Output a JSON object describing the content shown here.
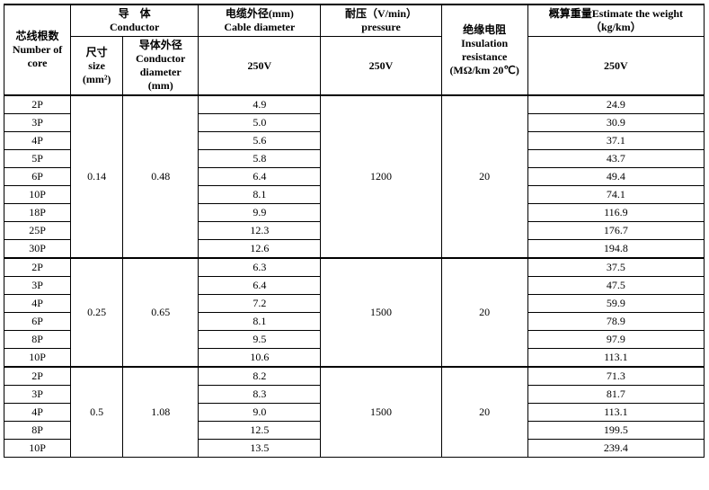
{
  "header": {
    "core": "芯线根数\nNumber of core",
    "conductor": "导　体\nConductor",
    "size": "尺寸\nsize\n(mm²)",
    "cond_dia": "导体外径\nConductor diameter\n(mm)",
    "cable_dia": "电缆外径(mm)\nCable diameter",
    "pressure": "耐压（V/min）\npressure",
    "insulation": "绝缘电阻\nInsulation resistance\n(MΩ/km 20℃)",
    "weight": "概算重量Estimate the weight（kg/km）",
    "v250": "250V"
  },
  "groups": [
    {
      "size": "0.14",
      "cond_dia": "0.48",
      "pressure": "1200",
      "insulation": "20",
      "rows": [
        {
          "core": "2P",
          "dia": "4.9",
          "wt": "24.9"
        },
        {
          "core": "3P",
          "dia": "5.0",
          "wt": "30.9"
        },
        {
          "core": "4P",
          "dia": "5.6",
          "wt": "37.1"
        },
        {
          "core": "5P",
          "dia": "5.8",
          "wt": "43.7"
        },
        {
          "core": "6P",
          "dia": "6.4",
          "wt": "49.4"
        },
        {
          "core": "10P",
          "dia": "8.1",
          "wt": "74.1"
        },
        {
          "core": "18P",
          "dia": "9.9",
          "wt": "116.9"
        },
        {
          "core": "25P",
          "dia": "12.3",
          "wt": "176.7"
        },
        {
          "core": "30P",
          "dia": "12.6",
          "wt": "194.8"
        }
      ]
    },
    {
      "size": "0.25",
      "cond_dia": "0.65",
      "pressure": "1500",
      "insulation": "20",
      "rows": [
        {
          "core": "2P",
          "dia": "6.3",
          "wt": "37.5"
        },
        {
          "core": "3P",
          "dia": "6.4",
          "wt": "47.5"
        },
        {
          "core": "4P",
          "dia": "7.2",
          "wt": "59.9"
        },
        {
          "core": "6P",
          "dia": "8.1",
          "wt": "78.9"
        },
        {
          "core": "8P",
          "dia": "9.5",
          "wt": "97.9"
        },
        {
          "core": "10P",
          "dia": "10.6",
          "wt": "113.1"
        }
      ]
    },
    {
      "size": "0.5",
      "cond_dia": "1.08",
      "pressure": "1500",
      "insulation": "20",
      "rows": [
        {
          "core": "2P",
          "dia": "8.2",
          "wt": "71.3"
        },
        {
          "core": "3P",
          "dia": "8.3",
          "wt": "81.7"
        },
        {
          "core": "4P",
          "dia": "9.0",
          "wt": "113.1"
        },
        {
          "core": "8P",
          "dia": "12.5",
          "wt": "199.5"
        },
        {
          "core": "10P",
          "dia": "13.5",
          "wt": "239.4"
        }
      ]
    }
  ]
}
